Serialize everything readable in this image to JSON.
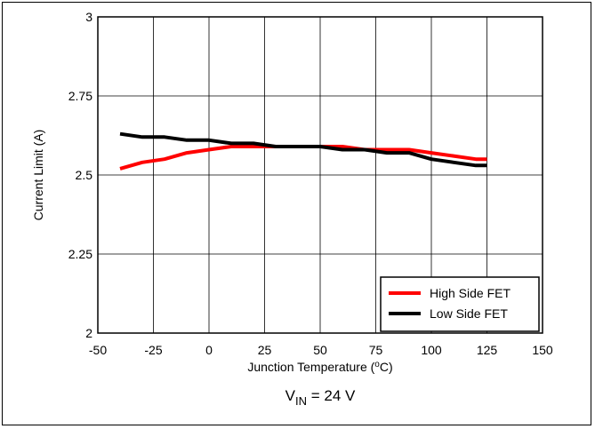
{
  "chart_data": {
    "type": "line",
    "xlabel_text": "Junction Temperature (",
    "xlabel_sup": "o",
    "xlabel_tail": "C)",
    "ylabel": "Current Limit (A)",
    "caption_main": "V",
    "caption_sub": "IN",
    "caption_tail": " = 24 V",
    "xlim": [
      -50,
      150
    ],
    "ylim": [
      2,
      3
    ],
    "xticks": [
      -50,
      -25,
      0,
      25,
      50,
      75,
      100,
      125,
      150
    ],
    "yticks": [
      2,
      2.25,
      2.5,
      2.75,
      3
    ],
    "xtick_labels": [
      "-50",
      "-25",
      "0",
      "25",
      "50",
      "75",
      "100",
      "125",
      "150"
    ],
    "ytick_labels": [
      "2",
      "2.25",
      "2.5",
      "2.75",
      "3"
    ],
    "grid": true,
    "legend_position": "bottom-right",
    "series": [
      {
        "name": "High Side FET",
        "color": "#ff0000",
        "x": [
          -40,
          -30,
          -20,
          -10,
          0,
          10,
          20,
          30,
          40,
          50,
          60,
          70,
          80,
          90,
          100,
          110,
          120,
          125
        ],
        "y": [
          2.52,
          2.54,
          2.55,
          2.57,
          2.58,
          2.59,
          2.59,
          2.59,
          2.59,
          2.59,
          2.59,
          2.58,
          2.58,
          2.58,
          2.57,
          2.56,
          2.55,
          2.55
        ]
      },
      {
        "name": "Low Side FET",
        "color": "#000000",
        "x": [
          -40,
          -30,
          -20,
          -10,
          0,
          10,
          20,
          30,
          40,
          50,
          60,
          70,
          80,
          90,
          100,
          110,
          120,
          125
        ],
        "y": [
          2.63,
          2.62,
          2.62,
          2.61,
          2.61,
          2.6,
          2.6,
          2.59,
          2.59,
          2.59,
          2.58,
          2.58,
          2.57,
          2.57,
          2.55,
          2.54,
          2.53,
          2.53
        ]
      }
    ]
  }
}
